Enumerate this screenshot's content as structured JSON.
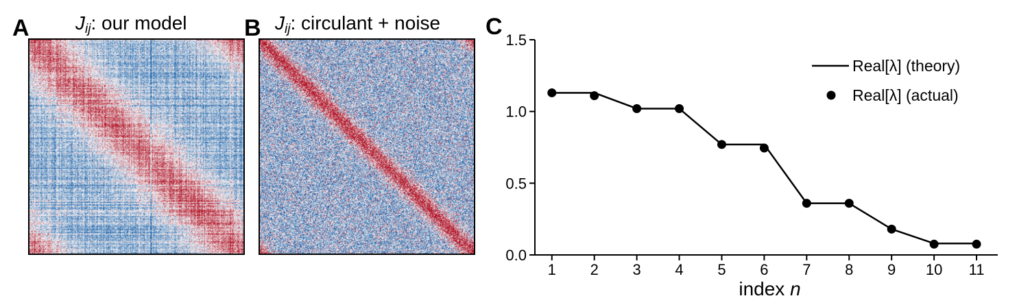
{
  "panels": {
    "a": {
      "letter": "A",
      "title_symbol": "J",
      "title_sub": "ij",
      "title_rest": ": our model"
    },
    "b": {
      "letter": "B",
      "title_symbol": "J",
      "title_sub": "ij",
      "title_rest": ": circulant + noise"
    },
    "c": {
      "letter": "C"
    }
  },
  "colors": {
    "diverging_negative": "#2166ac",
    "diverging_neutral": "#f7f7f7",
    "diverging_positive": "#b2182b",
    "line": "#000000"
  },
  "chart_data": [
    {
      "type": "heatmap",
      "panel": "A",
      "title": "J_ij: our model",
      "description_of_structure": "banded positive (red) near diagonal, negative (blue) off-diagonal corners, strongly noisy"
    },
    {
      "type": "heatmap",
      "panel": "B",
      "title": "J_ij: circulant + noise",
      "description_of_structure": "sharp positive diagonal band with wrap-around at corners, uniform noise elsewhere"
    },
    {
      "type": "line",
      "panel": "C",
      "xlabel": "index n",
      "ylabel": "",
      "xlim": [
        0.6,
        11.5
      ],
      "ylim": [
        0,
        1.5
      ],
      "xticks": [
        1,
        2,
        3,
        4,
        5,
        6,
        7,
        8,
        9,
        10,
        11
      ],
      "yticks": [
        0.0,
        0.5,
        1.0,
        1.5
      ],
      "ytick_labels": [
        "0.0",
        "0.5",
        "1.0",
        "1.5"
      ],
      "legend_position": "top-right",
      "series": [
        {
          "name": "Real[λ] (theory)",
          "style": "line",
          "x": [
            1,
            2,
            3,
            4,
            5,
            6,
            7,
            8,
            9,
            10,
            11
          ],
          "values": [
            1.13,
            1.13,
            1.02,
            1.02,
            0.77,
            0.77,
            0.36,
            0.36,
            0.18,
            0.08,
            0.08
          ]
        },
        {
          "name": "Real[λ] (actual)",
          "style": "markers",
          "x": [
            1,
            2,
            3,
            4,
            5,
            6,
            7,
            8,
            9,
            10,
            11
          ],
          "values": [
            1.13,
            1.11,
            1.02,
            1.02,
            0.77,
            0.745,
            0.36,
            0.36,
            0.18,
            0.075,
            0.075
          ]
        }
      ]
    }
  ]
}
